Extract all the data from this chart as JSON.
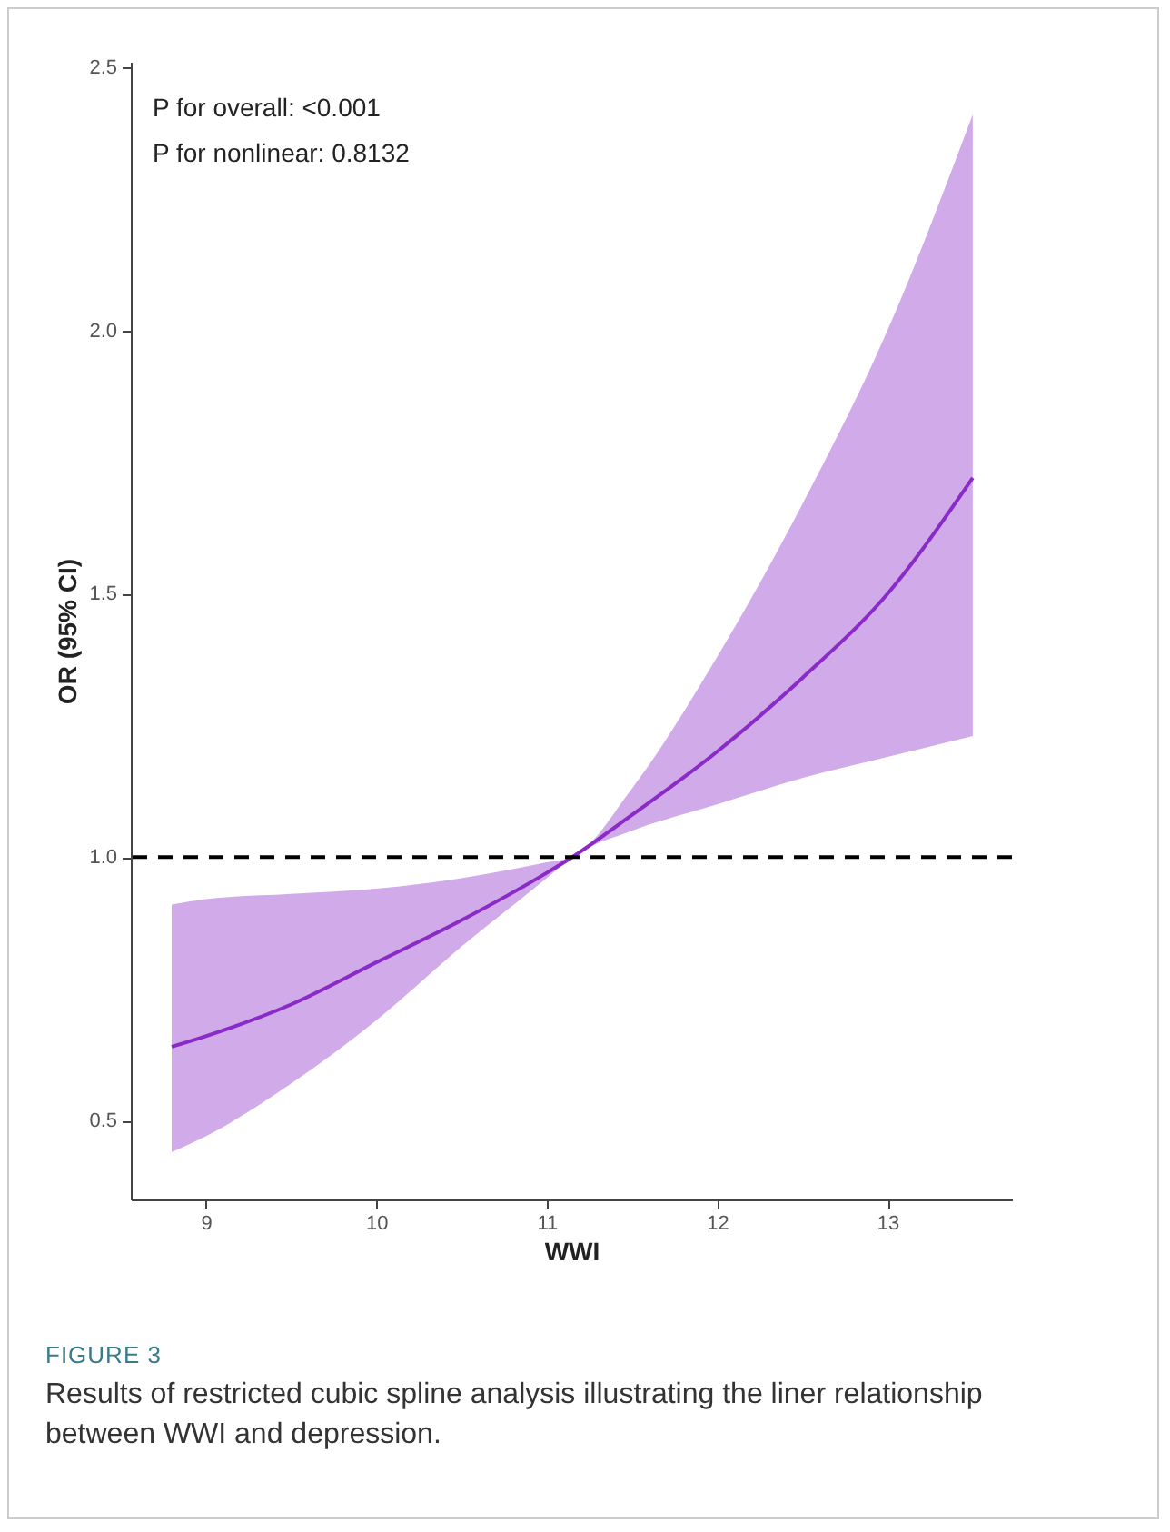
{
  "chart_data": {
    "type": "line",
    "xlabel": "WWI",
    "ylabel": "OR (95% CI)",
    "x": [
      8.8,
      9,
      9.5,
      10,
      10.5,
      11,
      11.15,
      11.5,
      12,
      12.5,
      13,
      13.5
    ],
    "series": [
      {
        "color": "#8a2bc8",
        "values": [
          0.64,
          0.66,
          0.72,
          0.8,
          0.88,
          0.97,
          1.0,
          1.08,
          1.2,
          1.34,
          1.5,
          1.72
        ],
        "lower": [
          0.44,
          0.47,
          0.57,
          0.69,
          0.83,
          0.96,
          1.0,
          1.05,
          1.1,
          1.15,
          1.19,
          1.23
        ],
        "upper": [
          0.91,
          0.92,
          0.93,
          0.94,
          0.96,
          0.99,
          1.0,
          1.13,
          1.38,
          1.67,
          2.0,
          2.41
        ]
      }
    ],
    "xlim": [
      8.56,
      13.73
    ],
    "xticks": [
      9,
      10,
      11,
      12,
      13
    ],
    "ylim": [
      0.35,
      2.51
    ],
    "yticks": [
      0.5,
      {
        "value": 1,
        "label": "1.0"
      },
      1.5,
      {
        "value": 2,
        "label": "2.0"
      },
      2.5
    ],
    "ref_lines": [
      {
        "axis": "y",
        "value": 1.0,
        "color": "#000000",
        "line_style": "dashed"
      }
    ],
    "annotations": [
      "P for overall:  <0.001",
      "P for nonlinear:  0.8132",
      "FIGURE 3",
      "Results of restricted cubic spline analysis illustrating the liner relationship between WWI and depression."
    ],
    "grid": false,
    "marker": "none",
    "line_style": "solid"
  }
}
